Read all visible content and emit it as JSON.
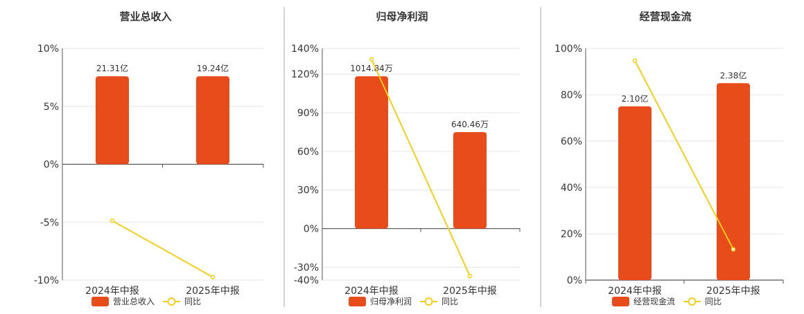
{
  "colors": {
    "bar": "#e84c1b",
    "line": "#f2cf1a",
    "axis": "#555555",
    "grid": "#e6e6e6",
    "divider": "#aaaaaa",
    "text": "#333333"
  },
  "chart_data": [
    {
      "type": "bar",
      "title": "营业总收入",
      "categories": [
        "2024年中报",
        "2025年中报"
      ],
      "series": [
        {
          "name": "营业总收入",
          "type": "bar",
          "values": [
            7.6,
            7.6
          ],
          "labels": [
            "21.31亿",
            "19.24亿"
          ],
          "actual_values": [
            21.31,
            19.24
          ],
          "unit": "亿"
        },
        {
          "name": "同比",
          "type": "line",
          "values": [
            -4.87,
            -9.74
          ]
        }
      ],
      "y_ticks": [
        "10%",
        "5%",
        "0%",
        "-5%",
        "-10%"
      ],
      "ylim": [
        -10,
        10
      ],
      "grid": true,
      "legend": "bottom"
    },
    {
      "type": "bar",
      "title": "归母净利润",
      "categories": [
        "2024年中报",
        "2025年中报"
      ],
      "series": [
        {
          "name": "归母净利润",
          "type": "bar",
          "values": [
            118.4,
            75.0
          ],
          "labels": [
            "1014.84万",
            "640.46万"
          ],
          "actual_values": [
            1014.84,
            640.46
          ],
          "unit": "万"
        },
        {
          "name": "同比",
          "type": "line",
          "values": [
            131.5,
            -36.9
          ]
        }
      ],
      "y_ticks": [
        "140%",
        "120%",
        "90%",
        "60%",
        "30%",
        "0%",
        "-30%",
        "-40%"
      ],
      "ylim": [
        -40,
        140
      ],
      "grid": true,
      "legend": "bottom"
    },
    {
      "type": "bar",
      "title": "经营现金流",
      "categories": [
        "2024年中报",
        "2025年中报"
      ],
      "series": [
        {
          "name": "经营现金流",
          "type": "bar",
          "values": [
            75.0,
            85.0
          ],
          "labels": [
            "2.10亿",
            "2.38亿"
          ],
          "actual_values": [
            2.1,
            2.38
          ],
          "unit": "亿"
        },
        {
          "name": "同比",
          "type": "line",
          "values": [
            94.7,
            13.3
          ]
        }
      ],
      "y_ticks": [
        "100%",
        "80%",
        "60%",
        "40%",
        "20%",
        "0%"
      ],
      "ylim": [
        0,
        100
      ],
      "grid": true,
      "legend": "bottom"
    }
  ]
}
